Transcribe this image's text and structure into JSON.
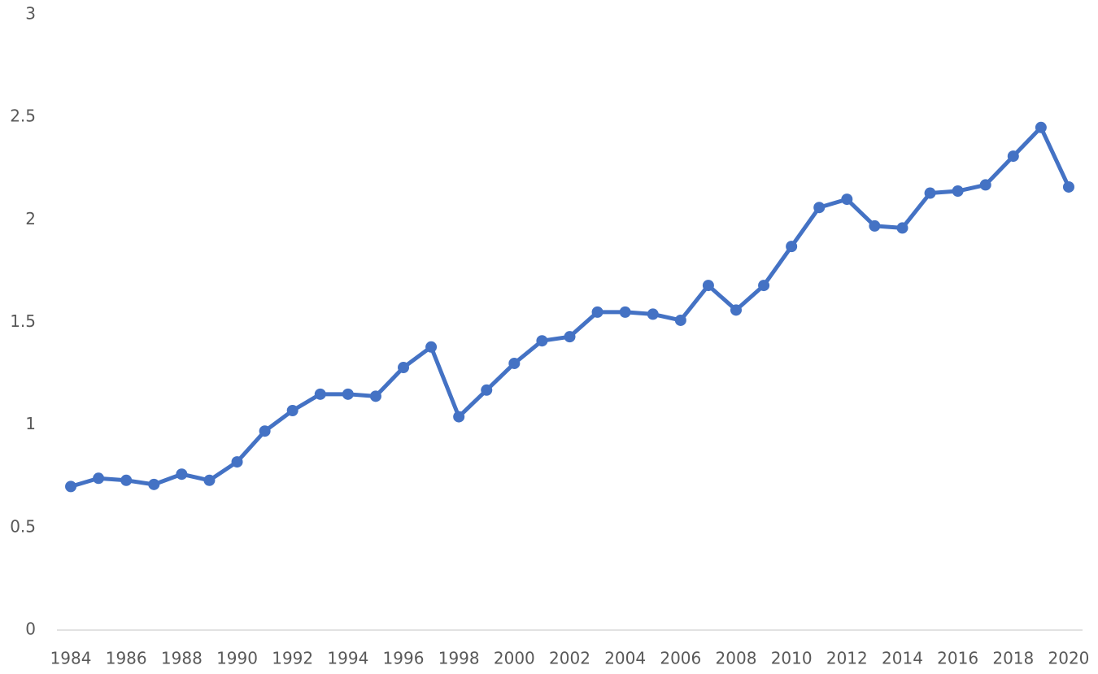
{
  "chart_data": {
    "type": "line",
    "categories": [
      "1984",
      null,
      "1986",
      null,
      "1988",
      null,
      "1990",
      null,
      "1992",
      null,
      "1994",
      null,
      "1996",
      null,
      "1998",
      null,
      "2000",
      null,
      "2002",
      null,
      "2004",
      null,
      "2006",
      null,
      "2008",
      null,
      "2010",
      null,
      "2012",
      null,
      "2014",
      null,
      "2016",
      null,
      "2018",
      null,
      "2020"
    ],
    "series": [
      {
        "color": "#4472c4",
        "values": [
          0.7,
          0.74,
          0.73,
          0.71,
          0.76,
          0.73,
          0.82,
          0.97,
          1.07,
          1.15,
          1.15,
          1.14,
          1.28,
          1.38,
          1.04,
          1.17,
          1.3,
          1.41,
          1.43,
          1.55,
          1.55,
          1.54,
          1.51,
          1.68,
          1.56,
          1.68,
          1.87,
          2.06,
          2.1,
          1.97,
          1.96,
          2.13,
          2.14,
          2.17,
          2.31,
          2.45,
          2.16
        ]
      }
    ],
    "ylim": [
      0,
      3
    ],
    "yticks": [
      0,
      0.5,
      1,
      1.5,
      2,
      2.5,
      3
    ],
    "grid": false,
    "markers": true
  }
}
